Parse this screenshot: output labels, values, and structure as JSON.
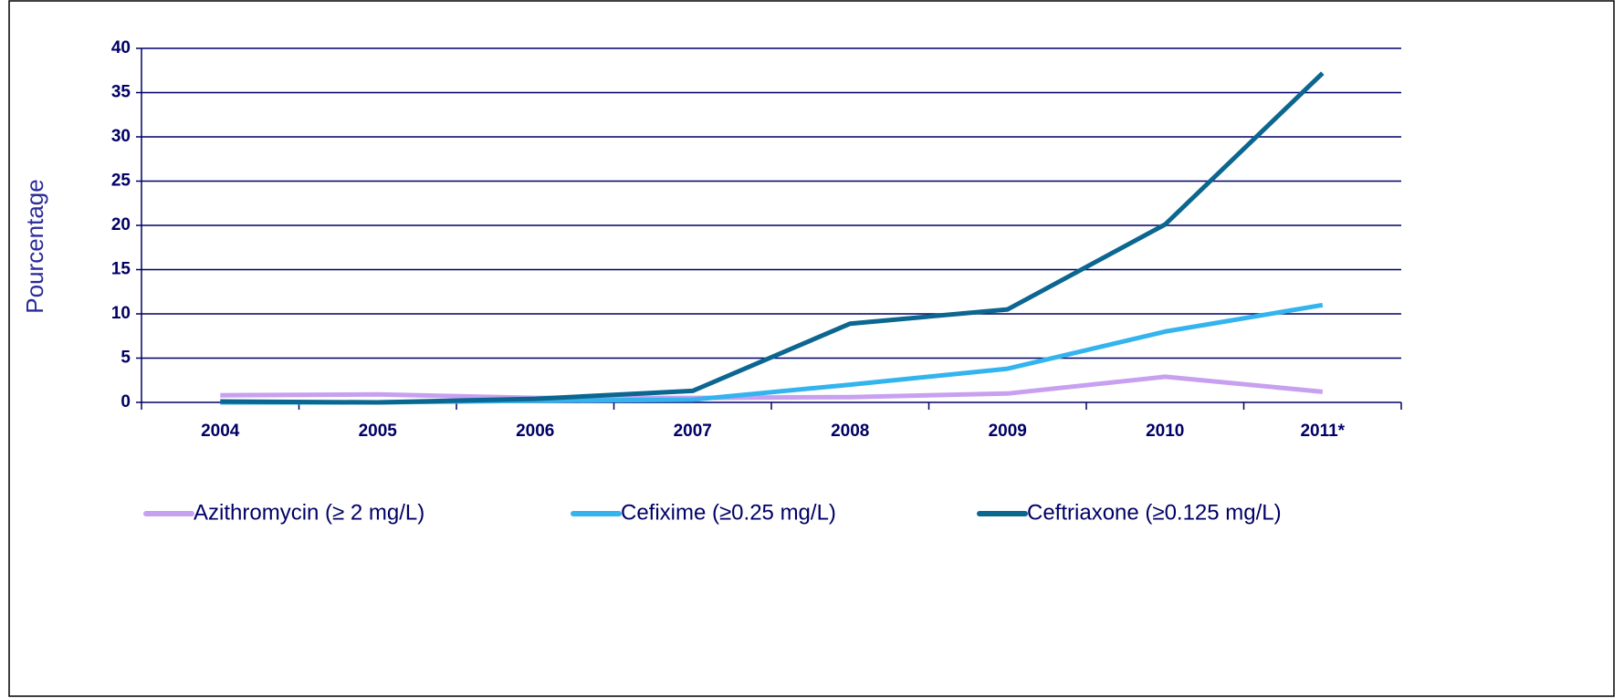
{
  "chart_data": {
    "type": "line",
    "y_label": "Pourcentage",
    "categories": [
      "2004",
      "2005",
      "2006",
      "2007",
      "2008",
      "2009",
      "2010",
      "2011*"
    ],
    "series": [
      {
        "name": "Azithromycin (≥ 2 mg/L)",
        "color": "#c8a0f0",
        "values": [
          0.8,
          0.9,
          0.5,
          0.5,
          0.6,
          1.0,
          2.9,
          1.2
        ]
      },
      {
        "name": "Cefixime (≥0.25 mg/L)",
        "color": "#33b4ee",
        "values": [
          0,
          0,
          0.2,
          0.3,
          2.0,
          3.8,
          8.0,
          11.0
        ]
      },
      {
        "name": "Ceftriaxone  (≥0.125 mg/L)",
        "color": "#0b6690",
        "values": [
          0.1,
          0,
          0.4,
          1.3,
          8.9,
          10.5,
          20.1,
          37.2
        ]
      }
    ],
    "ylim": [
      0,
      40
    ],
    "yticks": [
      0,
      5,
      10,
      15,
      20,
      25,
      30,
      35,
      40
    ],
    "grid": true,
    "legend": "bottom"
  }
}
